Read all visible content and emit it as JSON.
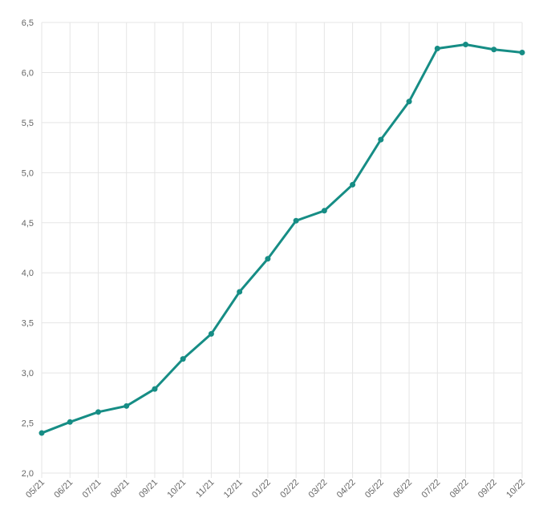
{
  "chart_data": {
    "type": "line",
    "categories": [
      "05/21",
      "06/21",
      "07/21",
      "08/21",
      "09/21",
      "10/21",
      "11/21",
      "12/21",
      "01/22",
      "02/22",
      "03/22",
      "04/22",
      "05/22",
      "06/22",
      "07/22",
      "08/22",
      "09/22",
      "10/22"
    ],
    "series": [
      {
        "values": [
          2.4,
          2.51,
          2.61,
          2.67,
          2.84,
          3.14,
          3.39,
          3.81,
          4.14,
          4.52,
          4.62,
          4.88,
          5.33,
          5.71,
          6.24,
          6.28,
          6.23,
          6.2
        ],
        "color": "#168d85"
      }
    ],
    "y_ticks": [
      "2,0",
      "2,5",
      "3,0",
      "3,5",
      "4,0",
      "4,5",
      "5,0",
      "5,5",
      "6,0",
      "6,5"
    ],
    "ylim": [
      2.0,
      6.5
    ],
    "grid": true,
    "legend": "none",
    "title": "",
    "xlabel": "",
    "ylabel": "",
    "colors": {
      "line": "#168d85",
      "grid": "#e5e5e5",
      "tick_text": "#666666"
    }
  }
}
